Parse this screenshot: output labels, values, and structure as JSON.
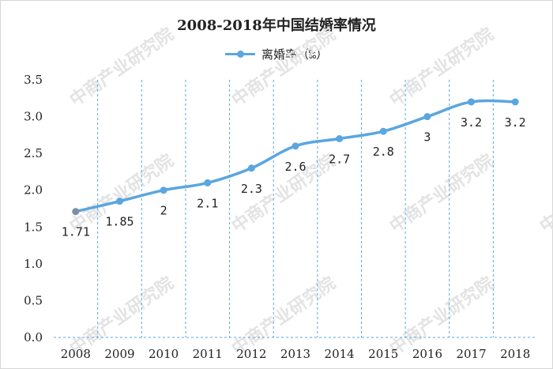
{
  "chart_data": {
    "type": "line",
    "title": "2008-2018年中国结婚率情况",
    "categories": [
      "2008",
      "2009",
      "2010",
      "2011",
      "2012",
      "2013",
      "2014",
      "2015",
      "2016",
      "2017",
      "2018"
    ],
    "series": [
      {
        "name": "离婚率（‰）",
        "values": [
          1.71,
          1.85,
          2,
          2.1,
          2.3,
          2.6,
          2.7,
          2.8,
          3,
          3.2,
          3.2
        ]
      }
    ],
    "data_labels": [
      "1.71",
      "1.85",
      "2",
      "2.1",
      "2.3",
      "2.6",
      "2.7",
      "2.8",
      "3",
      "3.2",
      "3.2"
    ],
    "y_ticks": [
      "0.0",
      "0.5",
      "1.0",
      "1.5",
      "2.0",
      "2.5",
      "3.0",
      "3.5"
    ],
    "ylim": [
      0,
      3.5
    ],
    "grid": "vertical dashed",
    "legend_position": "top-center",
    "line_color": "#5aa6e0",
    "watermark_text": "中商产业研究院"
  }
}
